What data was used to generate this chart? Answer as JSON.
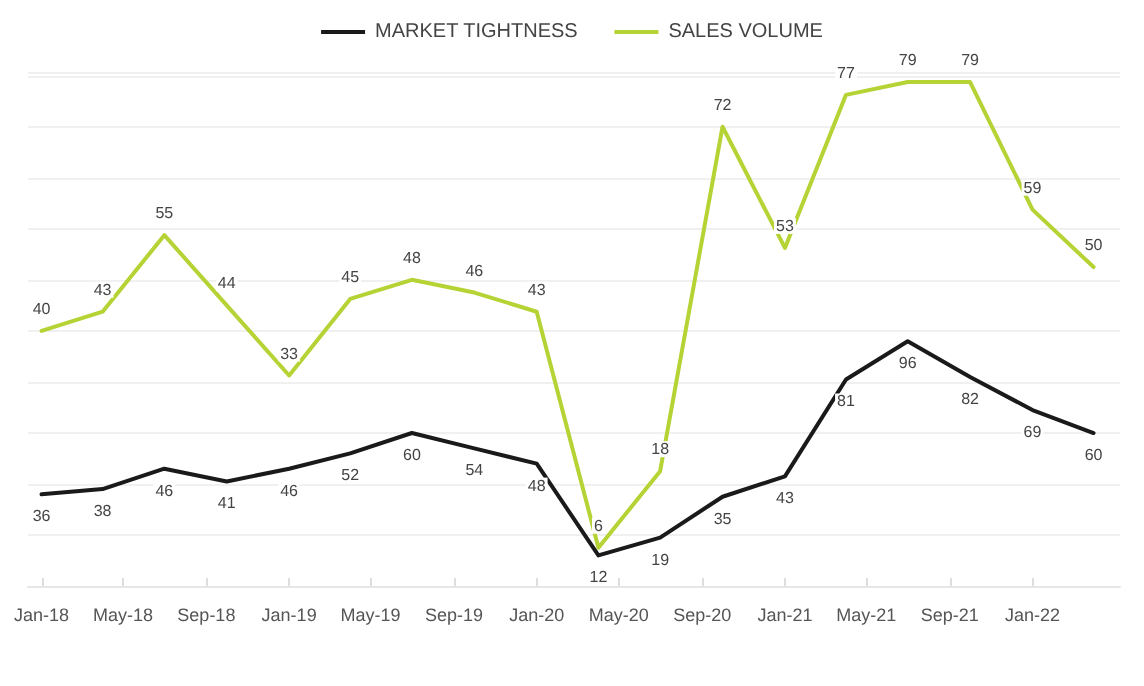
{
  "chart_data": {
    "type": "line",
    "x": [
      "2018-01",
      "2018-04",
      "2018-07",
      "2018-10",
      "2019-01",
      "2019-04",
      "2019-07",
      "2019-10",
      "2020-01",
      "2020-04",
      "2020-07",
      "2020-10",
      "2021-01",
      "2021-04",
      "2021-07",
      "2021-10",
      "2022-01",
      "2022-04"
    ],
    "series": [
      {
        "name": "MARKET TIGHTNESS",
        "color": "#1a1a1a",
        "values": [
          36,
          38,
          46,
          41,
          46,
          52,
          60,
          54,
          48,
          12,
          19,
          35,
          43,
          81,
          96,
          82,
          69,
          60
        ]
      },
      {
        "name": "SALES VOLUME",
        "color": "#b5d334",
        "axis": "y2",
        "values": [
          40,
          43,
          55,
          44,
          33,
          45,
          48,
          46,
          43,
          6,
          18,
          72,
          53,
          77,
          79,
          79,
          59,
          50
        ]
      }
    ],
    "xlim": [
      "2017-12-12",
      "2022-05-10"
    ],
    "xticks": [
      {
        "value": "2018-01",
        "label": "Jan-18"
      },
      {
        "value": "2018-05",
        "label": "May-18"
      },
      {
        "value": "2018-09",
        "label": "Sep-18"
      },
      {
        "value": "2019-01",
        "label": "Jan-19"
      },
      {
        "value": "2019-05",
        "label": "May-19"
      },
      {
        "value": "2019-09",
        "label": "Sep-19"
      },
      {
        "value": "2020-01",
        "label": "Jan-20"
      },
      {
        "value": "2020-05",
        "label": "May-20"
      },
      {
        "value": "2020-09",
        "label": "Sep-20"
      },
      {
        "value": "2021-01",
        "label": "Jan-21"
      },
      {
        "value": "2021-05",
        "label": "May-21"
      },
      {
        "value": "2021-09",
        "label": "Sep-21"
      },
      {
        "value": "2022-01",
        "label": "Jan-22"
      }
    ],
    "tick_labels": "x",
    "grid": "y",
    "legend": "top",
    "data_labels": true,
    "marker": "none",
    "line_style": "solid"
  }
}
